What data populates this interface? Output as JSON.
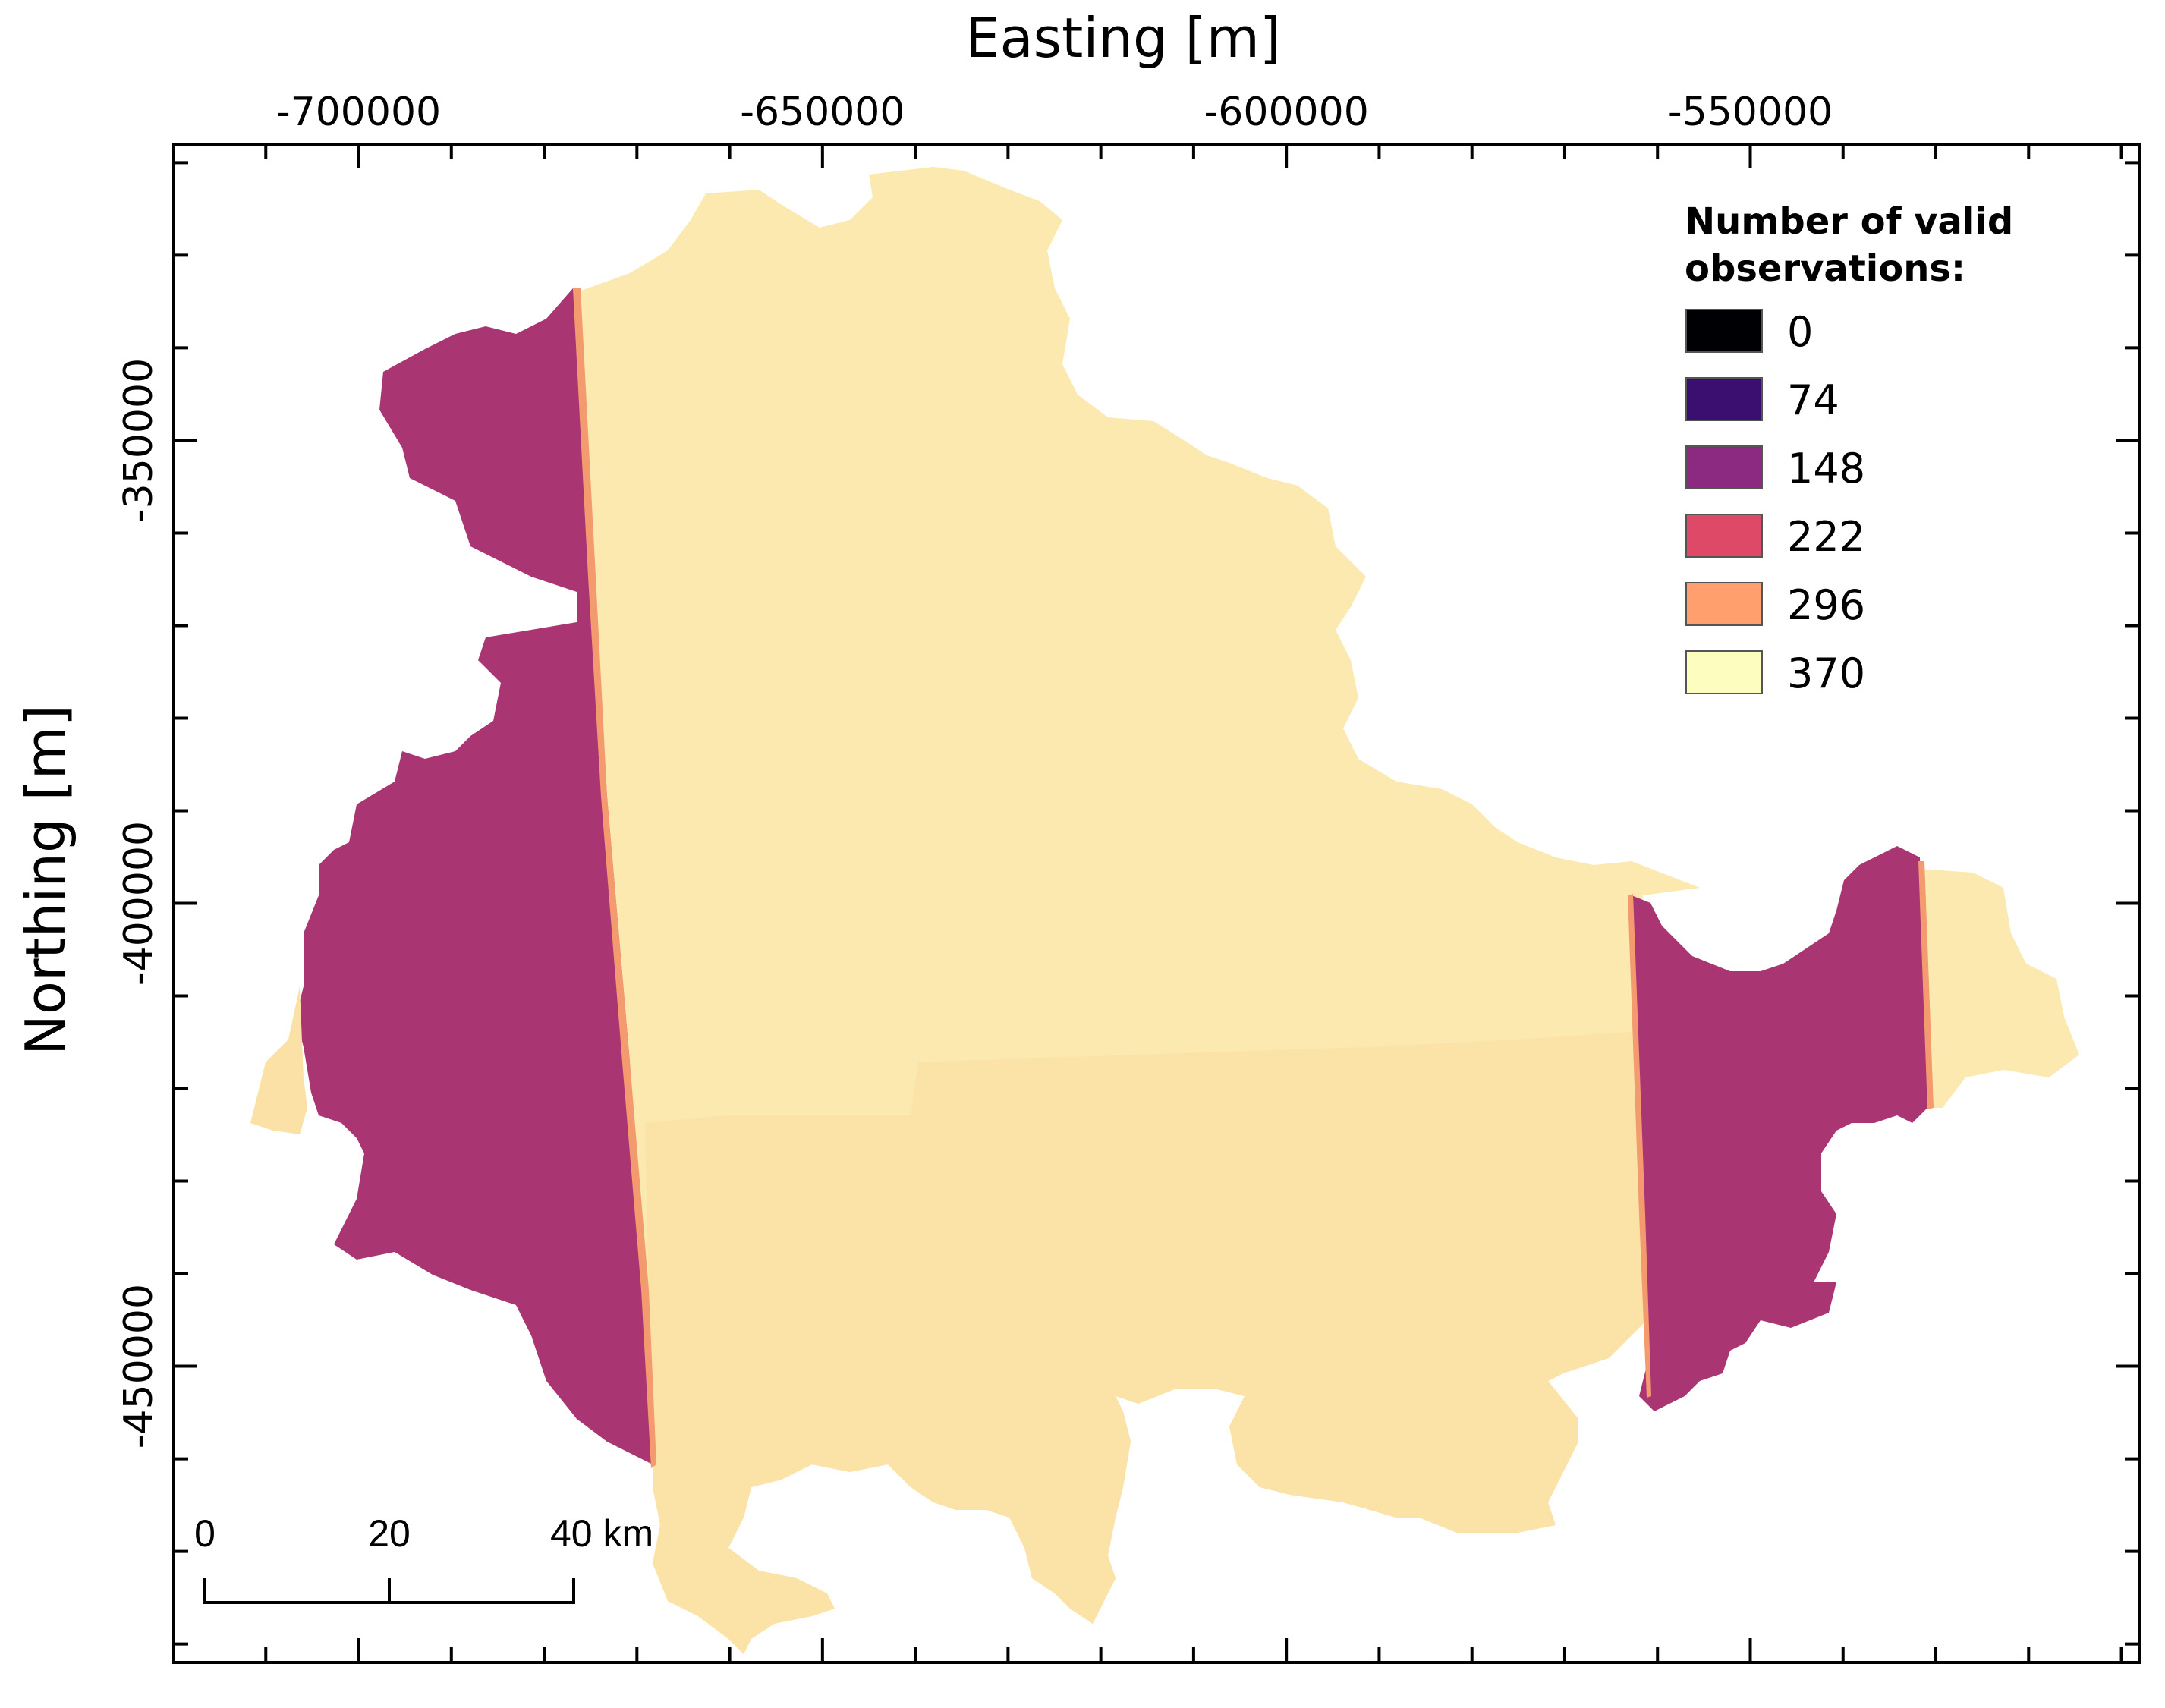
{
  "map": {
    "x_axis_title": "Easting [m]",
    "y_axis_title": "Northing [m]",
    "x_ticks": [
      {
        "value": -700000,
        "label": "-700000"
      },
      {
        "value": -650000,
        "label": "-650000"
      },
      {
        "value": -600000,
        "label": "-600000"
      },
      {
        "value": -550000,
        "label": "-550000"
      }
    ],
    "y_ticks": [
      {
        "value": -350000,
        "label": "-350000"
      },
      {
        "value": -400000,
        "label": "-400000"
      },
      {
        "value": -450000,
        "label": "-450000"
      }
    ],
    "xlim": [
      -720000,
      -508000
    ],
    "ylim": [
      -482000,
      -318000
    ],
    "legend": {
      "title_line1": "Number of valid",
      "title_line2": "observations:",
      "placement": "top-right",
      "entries": [
        {
          "label": "0",
          "color": "#000004"
        },
        {
          "label": "74",
          "color": "#3b0f70"
        },
        {
          "label": "148",
          "color": "#8c2981"
        },
        {
          "label": "222",
          "color": "#de4968"
        },
        {
          "label": "296",
          "color": "#fe9f6d"
        },
        {
          "label": "370",
          "color": "#fcfdbf"
        }
      ]
    },
    "scale_bar": {
      "labels": [
        "0",
        "20",
        "40 km"
      ]
    },
    "region_colors": {
      "high": "#fbe9b0",
      "high_south": "#fbe1a6",
      "mid": "#a93573",
      "edge": "#f49a6f"
    }
  }
}
